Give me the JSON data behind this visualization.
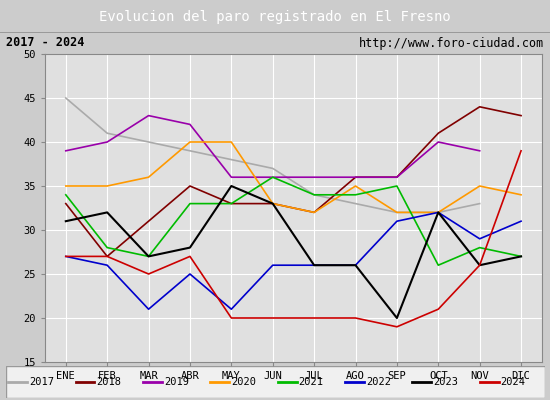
{
  "title": "Evolucion del paro registrado en El Fresno",
  "subtitle_left": "2017 - 2024",
  "subtitle_right": "http://www.foro-ciudad.com",
  "months": [
    "ENE",
    "FEB",
    "MAR",
    "ABR",
    "MAY",
    "JUN",
    "JUL",
    "AGO",
    "SEP",
    "OCT",
    "NOV",
    "DIC"
  ],
  "ylim": [
    15,
    50
  ],
  "yticks": [
    15,
    20,
    25,
    30,
    35,
    40,
    45,
    50
  ],
  "series": {
    "2017": {
      "data": [
        45,
        41,
        40,
        39,
        38,
        37,
        34,
        33,
        32,
        32,
        33,
        null
      ],
      "color": "#aaaaaa",
      "linewidth": 1.2
    },
    "2018": {
      "data": [
        33,
        27,
        31,
        35,
        33,
        33,
        32,
        36,
        36,
        41,
        44,
        43
      ],
      "color": "#800000",
      "linewidth": 1.2
    },
    "2019": {
      "data": [
        39,
        40,
        43,
        42,
        36,
        36,
        36,
        36,
        36,
        40,
        39,
        null
      ],
      "color": "#9900aa",
      "linewidth": 1.2
    },
    "2020": {
      "data": [
        35,
        35,
        36,
        40,
        40,
        33,
        32,
        35,
        32,
        32,
        35,
        34
      ],
      "color": "#ff9900",
      "linewidth": 1.2
    },
    "2021": {
      "data": [
        34,
        28,
        27,
        33,
        33,
        36,
        34,
        34,
        35,
        26,
        28,
        27
      ],
      "color": "#00bb00",
      "linewidth": 1.2
    },
    "2022": {
      "data": [
        27,
        26,
        21,
        25,
        21,
        26,
        26,
        26,
        31,
        32,
        29,
        31
      ],
      "color": "#0000cc",
      "linewidth": 1.2
    },
    "2023": {
      "data": [
        31,
        32,
        27,
        28,
        35,
        33,
        26,
        26,
        20,
        32,
        26,
        27
      ],
      "color": "#000000",
      "linewidth": 1.5
    },
    "2024": {
      "data": [
        27,
        27,
        25,
        27,
        20,
        20,
        20,
        20,
        19,
        21,
        26,
        39
      ],
      "color": "#cc0000",
      "linewidth": 1.2
    }
  },
  "background_color": "#cccccc",
  "plot_bg_color": "#e0e0e0",
  "title_bg_color": "#5577cc",
  "title_text_color": "#ffffff",
  "subtitle_bg_color": "#f0f0f0",
  "grid_color": "#ffffff",
  "legend_order": [
    "2017",
    "2018",
    "2019",
    "2020",
    "2021",
    "2022",
    "2023",
    "2024"
  ]
}
